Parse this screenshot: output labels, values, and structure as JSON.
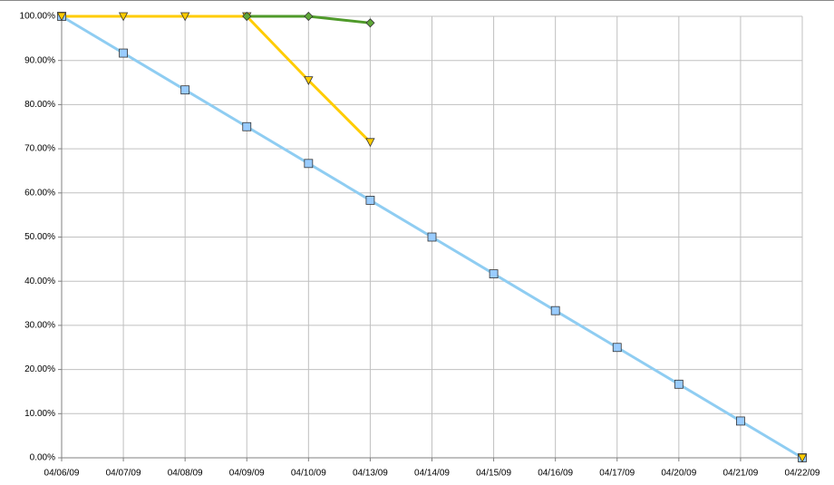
{
  "chart_data": {
    "type": "line",
    "categories": [
      "04/06/09",
      "04/07/09",
      "04/08/09",
      "04/09/09",
      "04/10/09",
      "04/13/09",
      "04/14/09",
      "04/15/09",
      "04/16/09",
      "04/17/09",
      "04/20/09",
      "04/21/09",
      "04/22/09"
    ],
    "series": [
      {
        "color": "#8fcdf2",
        "marker": "square",
        "marker_color": "#99ccff",
        "values": [
          100,
          91.67,
          83.33,
          75,
          66.67,
          58.33,
          50,
          41.67,
          33.33,
          25,
          16.67,
          8.33,
          0
        ]
      },
      {
        "color": "#ffcc00",
        "marker": "triangle",
        "marker_color": "#ffcc00",
        "values": [
          100,
          100,
          100,
          100,
          85.5,
          71.5,
          null,
          null,
          null,
          null,
          null,
          null,
          0
        ]
      },
      {
        "color": "#4f9a2a",
        "marker": "diamond",
        "marker_color": "#5fa838",
        "values": [
          null,
          null,
          null,
          100,
          100,
          98.5,
          null,
          null,
          null,
          null,
          null,
          null,
          null
        ]
      }
    ],
    "ylim": [
      0,
      100
    ],
    "yticks": [
      {
        "value": 0,
        "label": "0.00%"
      },
      {
        "value": 10,
        "label": "10.00%"
      },
      {
        "value": 20,
        "label": "20.00%"
      },
      {
        "value": 30,
        "label": "30.00%"
      },
      {
        "value": 40,
        "label": "40.00%"
      },
      {
        "value": 50,
        "label": "50.00%"
      },
      {
        "value": 60,
        "label": "60.00%"
      },
      {
        "value": 70,
        "label": "70.00%"
      },
      {
        "value": 80,
        "label": "80.00%"
      },
      {
        "value": 90,
        "label": "90.00%"
      },
      {
        "value": 100,
        "label": "100.00%"
      }
    ],
    "grid": true
  }
}
